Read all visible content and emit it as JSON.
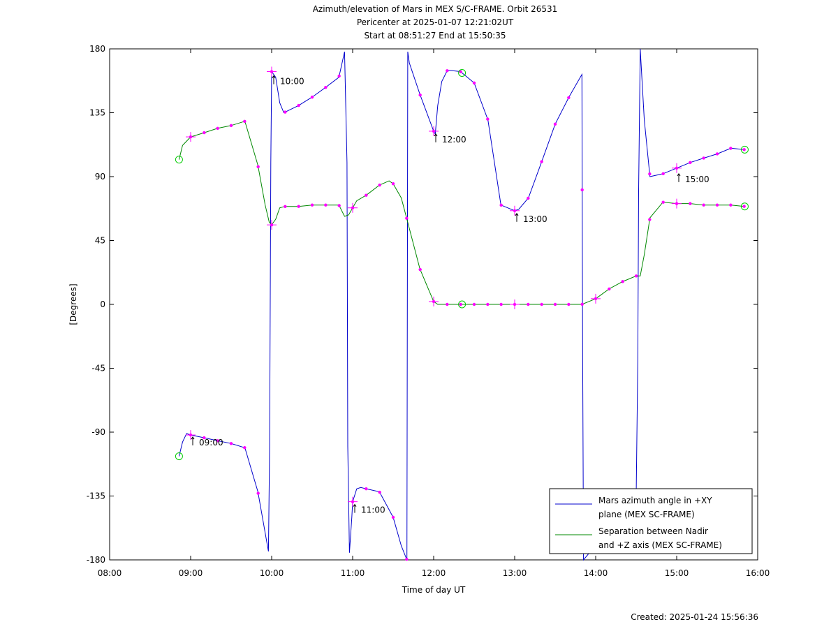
{
  "chart_data": {
    "type": "line",
    "title_lines": [
      "Azimuth/elevation of Mars in MEX S/C-FRAME.  Orbit 26531",
      "Pericenter at 2025-01-07 12:21:02UT",
      "Start at 08:51:27 End at 15:50:35"
    ],
    "xlabel": "Time of day UT",
    "ylabel": "[Degrees]",
    "xlim_hours": [
      8,
      16
    ],
    "ylim": [
      -180,
      180
    ],
    "x_ticks": [
      {
        "v": 8,
        "label": "08:00"
      },
      {
        "v": 9,
        "label": "09:00"
      },
      {
        "v": 10,
        "label": "10:00"
      },
      {
        "v": 11,
        "label": "11:00"
      },
      {
        "v": 12,
        "label": "12:00"
      },
      {
        "v": 13,
        "label": "13:00"
      },
      {
        "v": 14,
        "label": "14:00"
      },
      {
        "v": 15,
        "label": "15:00"
      },
      {
        "v": 16,
        "label": "16:00"
      }
    ],
    "y_ticks": [
      {
        "v": 180,
        "label": "180"
      },
      {
        "v": 135,
        "label": "135"
      },
      {
        "v": 90,
        "label": "90"
      },
      {
        "v": 45,
        "label": "45"
      },
      {
        "v": 0,
        "label": "0"
      },
      {
        "v": -45,
        "label": "-45"
      },
      {
        "v": -90,
        "label": "-90"
      },
      {
        "v": -135,
        "label": "-135"
      },
      {
        "v": -180,
        "label": "-180"
      }
    ],
    "series": [
      {
        "name": "Mars azimuth angle in +XY plane (MEX SC-FRAME)",
        "legend_lines": [
          "Mars azimuth angle in +XY",
          "plane (MEX SC-FRAME)"
        ],
        "color": "#0000cc",
        "x": [
          8.857,
          8.9,
          8.95,
          9.0,
          9.17,
          9.33,
          9.5,
          9.67,
          9.83,
          9.96,
          9.975,
          9.99,
          10.0,
          10.05,
          10.1,
          10.15,
          10.33,
          10.5,
          10.67,
          10.83,
          10.9,
          10.93,
          10.94,
          10.96,
          10.99,
          11.0,
          11.05,
          11.1,
          11.17,
          11.33,
          11.5,
          11.6,
          11.67,
          11.68,
          11.7,
          11.83,
          12.0,
          12.02,
          12.05,
          12.1,
          12.17,
          12.33,
          12.5,
          12.67,
          12.83,
          13.0,
          13.05,
          13.17,
          13.33,
          13.5,
          13.67,
          13.83,
          13.835,
          13.84,
          13.85,
          14.5,
          14.52,
          14.53,
          14.55,
          14.6,
          14.67,
          14.83,
          15.0,
          15.17,
          15.33,
          15.5,
          15.67,
          15.84
        ],
        "y": [
          -107,
          -97,
          -91,
          -92,
          -94,
          -96,
          -98,
          -101,
          -132,
          -174,
          -100,
          100,
          164,
          160,
          142,
          135,
          140,
          146,
          153,
          160,
          178,
          100,
          -100,
          -175,
          -150,
          -139,
          -130,
          -129,
          -130,
          -132,
          -150,
          -170,
          -180,
          178,
          170,
          148,
          122,
          120,
          140,
          157,
          165,
          164,
          156,
          130,
          70,
          66,
          67,
          75,
          100,
          127,
          146,
          162,
          40,
          -40,
          -180,
          -135,
          -40,
          80,
          180,
          130,
          90,
          92,
          96,
          100,
          103,
          106,
          110,
          109
        ]
      },
      {
        "name": "Separation between Nadir and +Z axis (MEX SC-FRAME)",
        "legend_lines": [
          "Separation between Nadir",
          "and +Z axis (MEX SC-FRAME)"
        ],
        "color": "#008800",
        "x": [
          8.857,
          8.9,
          9.0,
          9.17,
          9.33,
          9.5,
          9.67,
          9.83,
          9.92,
          9.97,
          10.0,
          10.05,
          10.1,
          10.17,
          10.33,
          10.5,
          10.67,
          10.83,
          10.9,
          10.95,
          11.0,
          11.05,
          11.17,
          11.33,
          11.45,
          11.5,
          11.6,
          11.67,
          11.83,
          12.0,
          12.05,
          12.17,
          12.33,
          12.5,
          12.67,
          12.83,
          13.0,
          13.17,
          13.33,
          13.5,
          13.67,
          13.83,
          14.0,
          14.17,
          14.33,
          14.5,
          14.55,
          14.6,
          14.67,
          14.83,
          15.0,
          15.17,
          15.33,
          15.5,
          15.67,
          15.84
        ],
        "y": [
          102,
          112,
          118,
          121,
          124,
          126,
          129,
          98,
          70,
          58,
          56,
          60,
          68,
          69,
          69,
          70,
          70,
          70,
          62,
          63,
          68,
          73,
          77,
          84,
          87,
          85,
          75,
          60,
          25,
          2,
          0,
          0,
          0,
          0,
          0,
          0,
          0,
          0,
          0,
          0,
          0,
          0,
          4,
          11,
          16,
          20,
          20,
          35,
          61,
          72,
          71,
          71,
          70,
          70,
          70,
          69
        ]
      }
    ],
    "time_annotations": [
      {
        "label": "09:00",
        "x": 9.0,
        "y": -91.5
      },
      {
        "label": "10:00",
        "x": 10.0,
        "y": 163
      },
      {
        "label": "11:00",
        "x": 11.0,
        "y": -139
      },
      {
        "label": "12:00",
        "x": 12.0,
        "y": 122
      },
      {
        "label": "13:00",
        "x": 13.0,
        "y": 66
      },
      {
        "label": "15:00",
        "x": 15.0,
        "y": 94
      }
    ],
    "pericenter_time_hours": 12.35,
    "marker_color": "#ff00ff",
    "circle_color": "#00cc00",
    "grid": false,
    "legend_position": "bottom-right",
    "footer": "Created: 2025-01-24 15:56:36"
  }
}
